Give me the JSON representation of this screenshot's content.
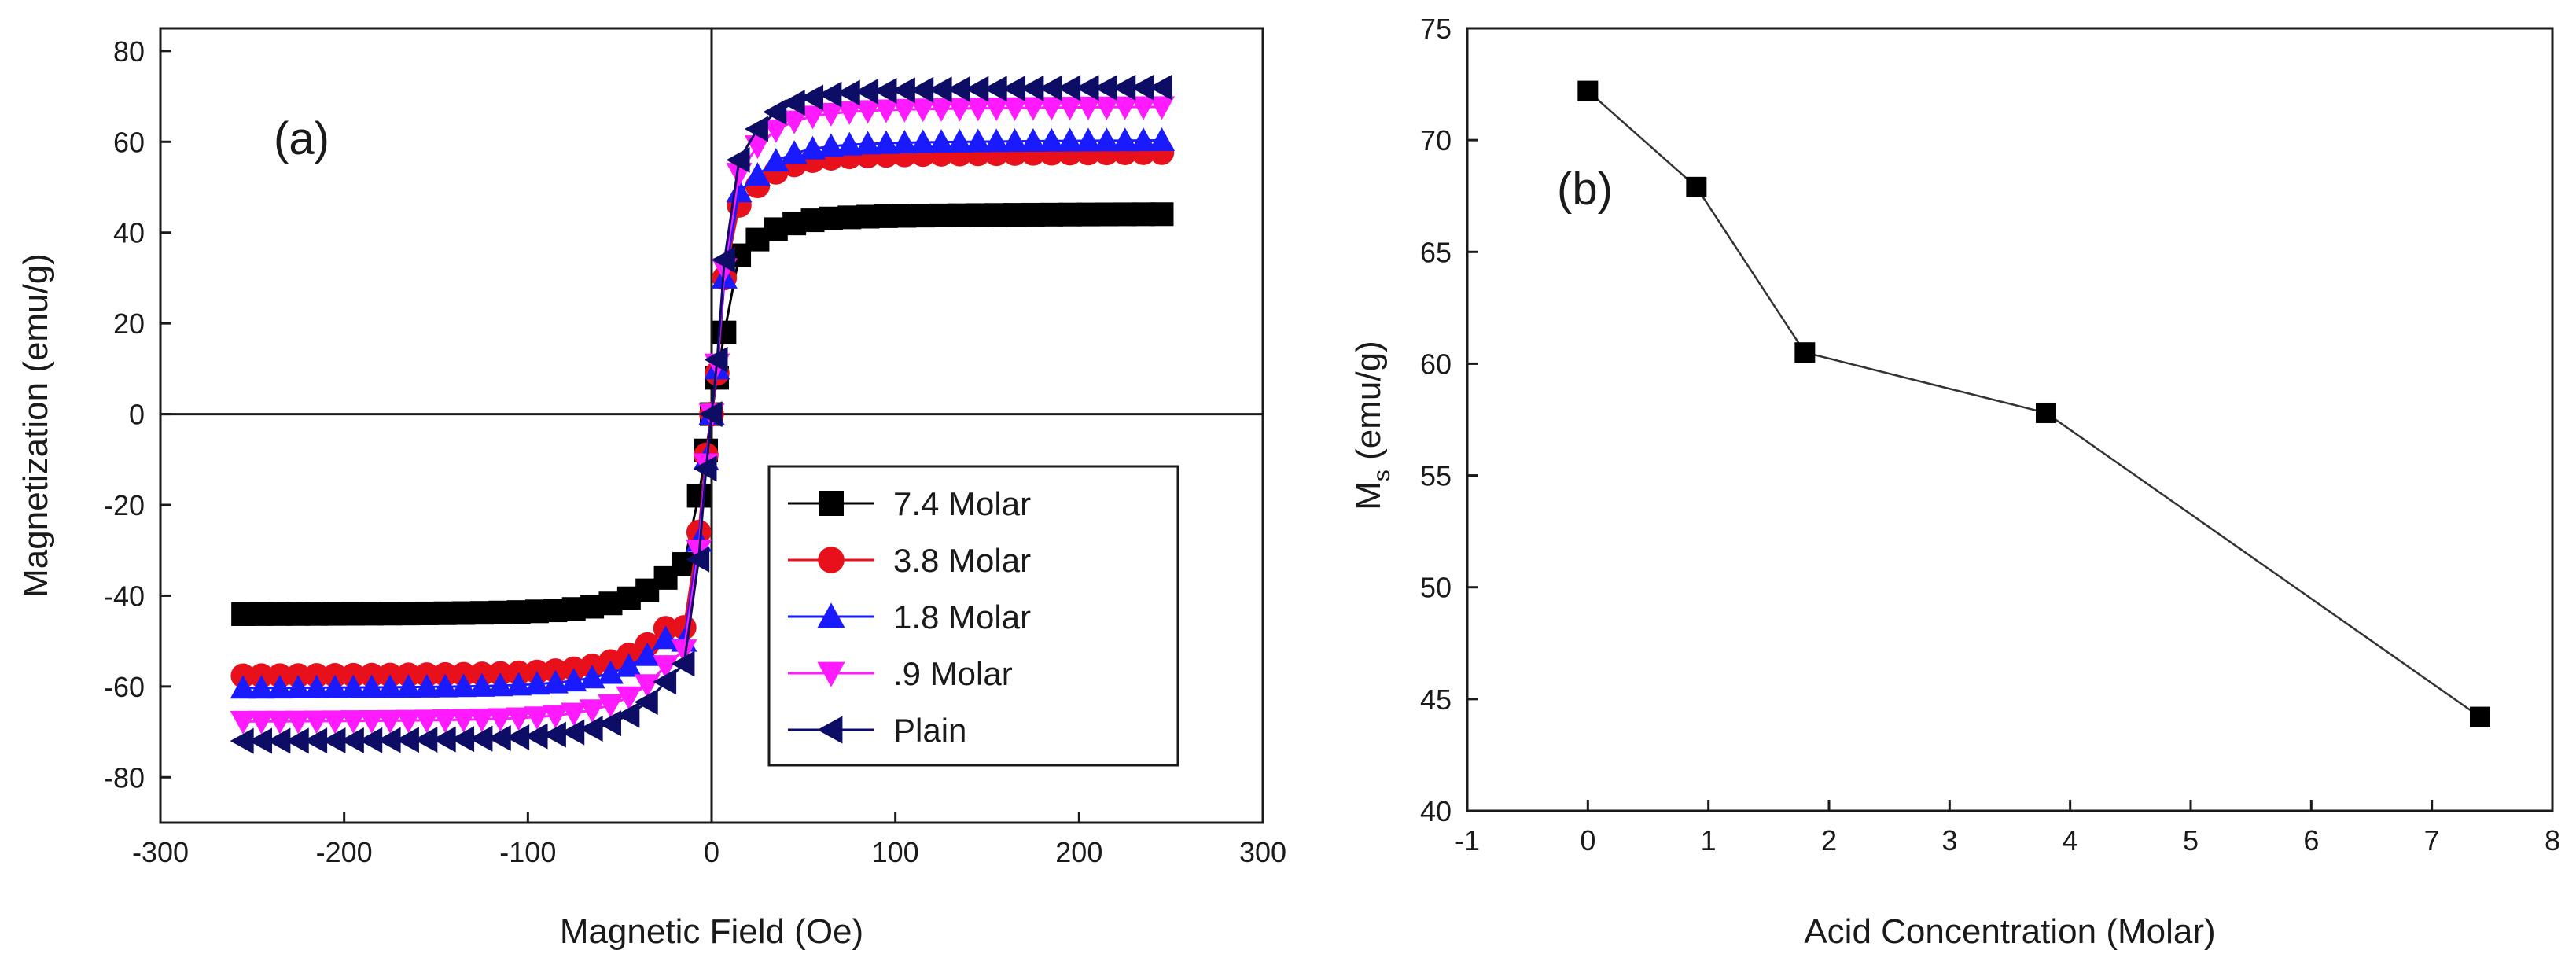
{
  "chart_data": [
    {
      "type": "line",
      "panel_label": "(a)",
      "xlabel": "Magnetic Field (Oe)",
      "ylabel": "Magnetization (emu/g)",
      "xlim": [
        -300,
        300
      ],
      "ylim": [
        -90,
        85
      ],
      "xticks": [
        -300,
        -200,
        -100,
        0,
        100,
        200,
        300
      ],
      "yticks": [
        -80,
        -60,
        -40,
        -20,
        0,
        20,
        40,
        60,
        80
      ],
      "zero_lines": true,
      "legend_position": "bottom-right",
      "series": [
        {
          "name": "7.4 Molar",
          "color": "#000000",
          "marker": "square",
          "ms": 44.2,
          "loop_x": [
            -15,
            -7,
            -3,
            0,
            3,
            7,
            15
          ],
          "loop_y": [
            -33,
            -18,
            -8,
            0,
            8,
            18,
            35
          ]
        },
        {
          "name": "3.8 Molar",
          "color": "#e8111b",
          "marker": "circle",
          "ms": 57.8,
          "loop_x": [
            -15,
            -7,
            -3,
            0,
            3,
            7,
            15
          ],
          "loop_y": [
            -47,
            -26,
            -9,
            0,
            9,
            30,
            46
          ]
        },
        {
          "name": "1.8 Molar",
          "color": "#1a1aff",
          "marker": "triangle-up",
          "ms": 60.5,
          "loop_x": [
            -15,
            -7,
            -3,
            0,
            3,
            7,
            15
          ],
          "loop_y": [
            -50,
            -28,
            -10,
            0,
            10,
            30,
            49
          ]
        },
        {
          "name": ".9 Molar",
          "color": "#ff1aff",
          "marker": "triangle-down",
          "ms": 67.9,
          "loop_x": [
            -15,
            -7,
            -3,
            0,
            3,
            7,
            15
          ],
          "loop_y": [
            -52,
            -30,
            -11,
            0,
            11,
            32,
            53
          ]
        },
        {
          "name": "Plain",
          "color": "#0d0d66",
          "marker": "triangle-left",
          "ms": 72.2,
          "loop_x": [
            -15,
            -7,
            -3,
            0,
            3,
            7,
            15
          ],
          "loop_y": [
            -55,
            -32,
            -12,
            0,
            12,
            34,
            56
          ]
        }
      ]
    },
    {
      "type": "line",
      "panel_label": "(b)",
      "xlabel": "Acid Concentration (Molar)",
      "ylabel": "M",
      "ylabel_sub": "s",
      "ylabel_unit": " (emu/g)",
      "xlim": [
        -1,
        8
      ],
      "ylim": [
        40,
        75
      ],
      "xticks": [
        -1,
        0,
        1,
        2,
        3,
        4,
        5,
        6,
        7,
        8
      ],
      "yticks": [
        40,
        45,
        50,
        55,
        60,
        65,
        70,
        75
      ],
      "x": [
        0,
        0.9,
        1.8,
        3.8,
        7.4
      ],
      "y": [
        72.2,
        67.9,
        60.5,
        57.8,
        44.2
      ],
      "color": "#000000",
      "marker": "square"
    }
  ]
}
